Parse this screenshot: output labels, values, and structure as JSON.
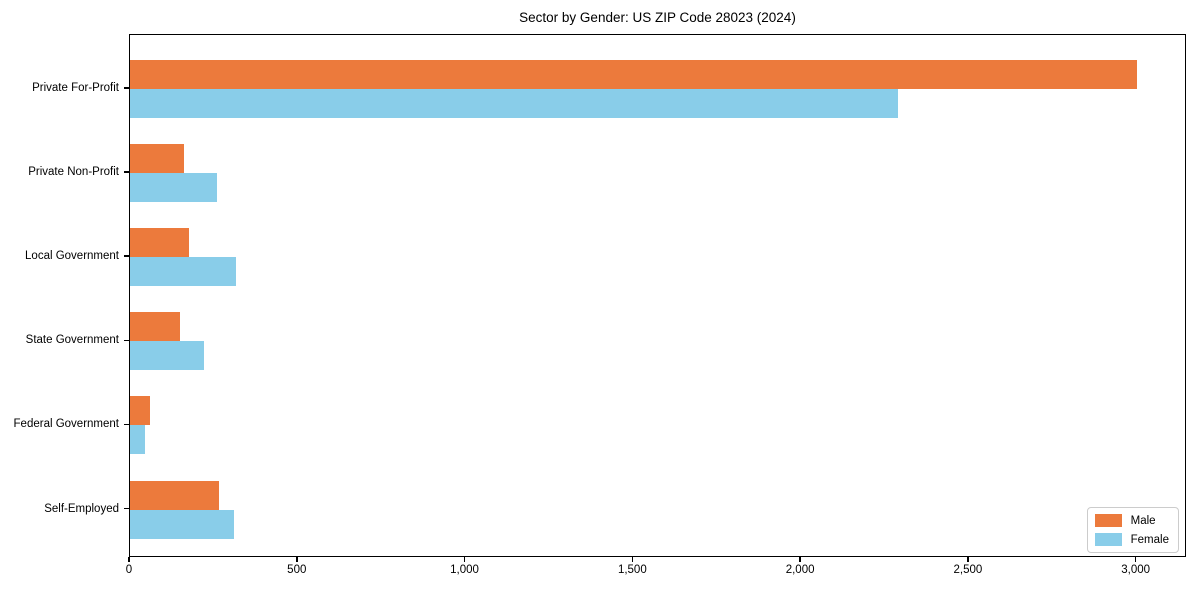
{
  "figure": {
    "background": "#ffffff",
    "text_color": "#000000",
    "axis_color": "#000000",
    "legend_border_color": "#cccccc"
  },
  "chart_data": {
    "type": "bar",
    "orientation": "horizontal",
    "title": "Sector by Gender: US ZIP Code 28023 (2024)",
    "categories": [
      "Private For-Profit",
      "Private Non-Profit",
      "Local Government",
      "State Government",
      "Federal Government",
      "Self-Employed"
    ],
    "series": [
      {
        "name": "Male",
        "color": "#ec7a3c",
        "values": [
          3000,
          160,
          175,
          150,
          60,
          265
        ]
      },
      {
        "name": "Female",
        "color": "#89cde9",
        "values": [
          2290,
          260,
          315,
          220,
          45,
          310
        ]
      }
    ],
    "xlabel": "",
    "ylabel": "",
    "xlim": [
      0,
      3150
    ],
    "x_ticks": [
      0,
      500,
      1000,
      1500,
      2000,
      2500,
      3000
    ],
    "x_tick_labels": [
      "0",
      "500",
      "1,000",
      "1,500",
      "2,000",
      "2,500",
      "3,000"
    ],
    "grid": false,
    "legend": {
      "position": "lower right",
      "entries": [
        "Male",
        "Female"
      ]
    }
  }
}
